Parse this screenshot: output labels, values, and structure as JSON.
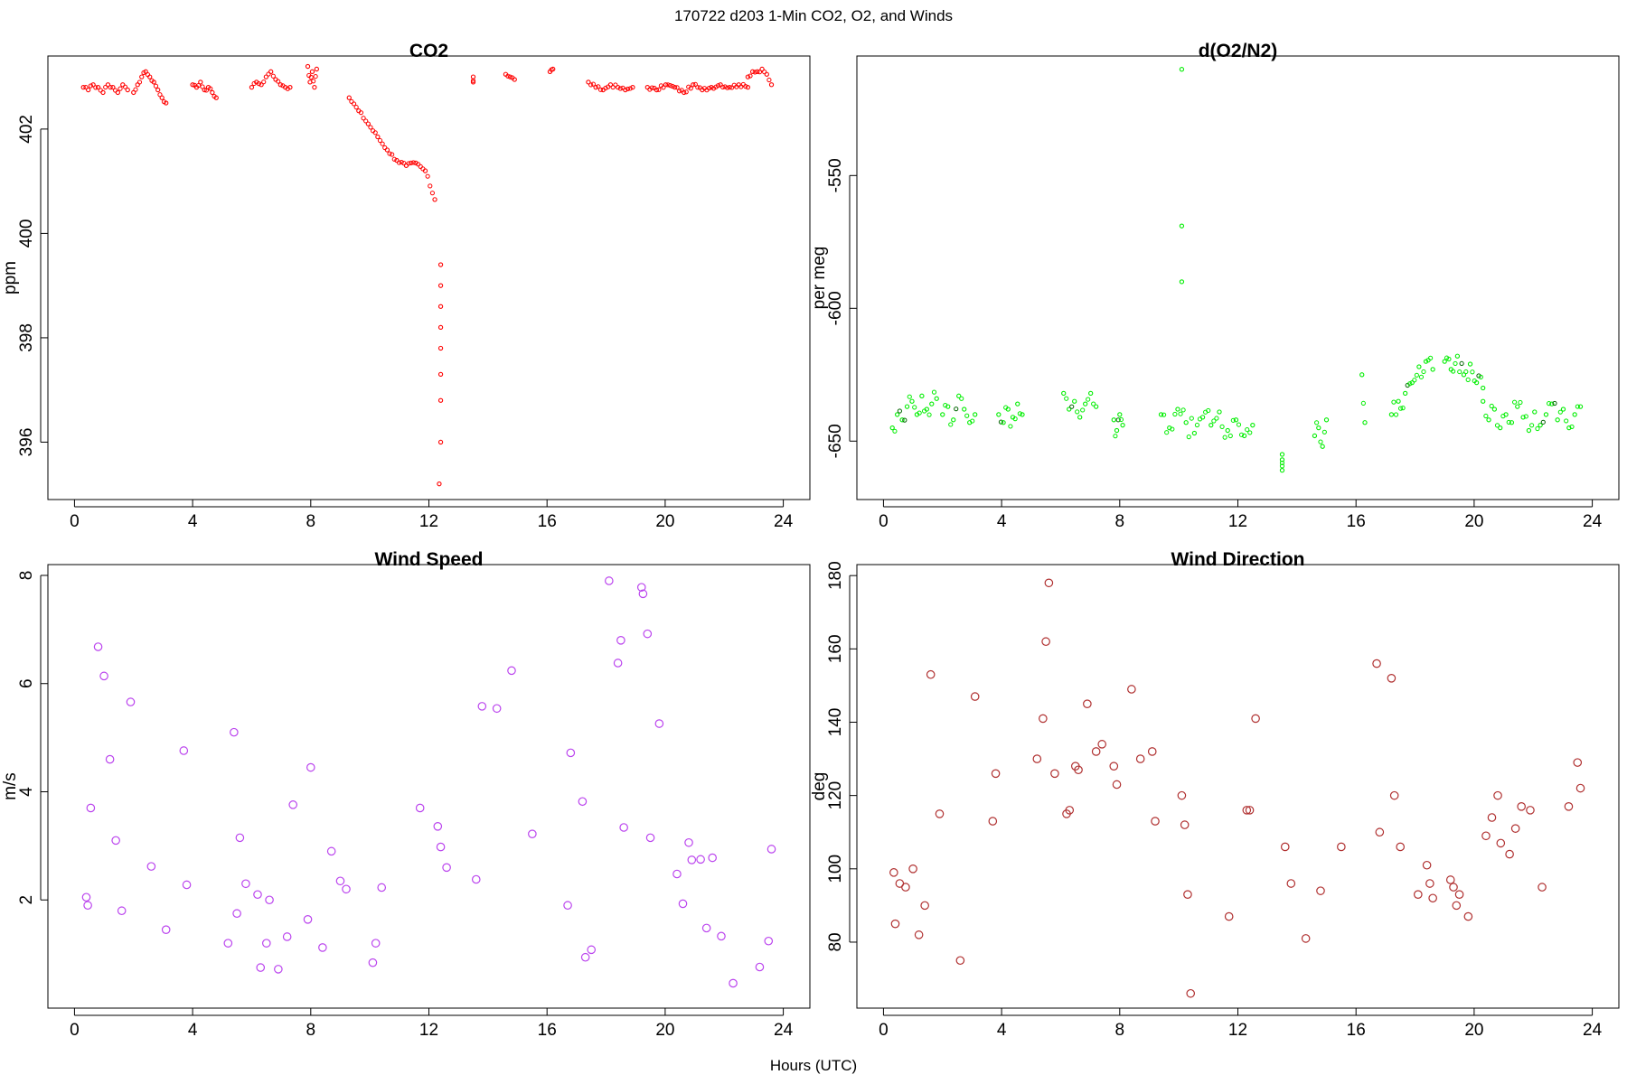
{
  "figure": {
    "title": "170722   d203   1-Min CO2, O2, and Winds",
    "xlabel": "Hours (UTC)"
  },
  "chart_data": [
    {
      "id": "co2",
      "type": "scatter",
      "title": "CO2",
      "xlabel": "",
      "ylabel": "ppm",
      "xlim": [
        -0.9,
        24.9
      ],
      "ylim": [
        394.9,
        403.4
      ],
      "xticks": [
        0,
        4,
        8,
        12,
        16,
        20,
        24
      ],
      "yticks": [
        396,
        398,
        400,
        402
      ],
      "color": "#ff0000",
      "marker_size": "small",
      "series": [
        {
          "name": "",
          "segments": [
            {
              "x0": 0.3,
              "x1": 1.8,
              "y": [
                402.8,
                402.75,
                402.85,
                402.8,
                402.7,
                402.85,
                402.8,
                402.7,
                402.85,
                402.75
              ]
            },
            {
              "x0": 2.0,
              "x1": 3.1,
              "y": [
                402.7,
                402.85,
                403.0,
                403.1,
                403.0,
                402.9,
                402.75,
                402.6,
                402.5
              ]
            },
            {
              "x0": 4.0,
              "x1": 4.8,
              "y": [
                402.85,
                402.8,
                402.9,
                402.75,
                402.8,
                402.7,
                402.6
              ]
            },
            {
              "x0": 6.0,
              "x1": 7.3,
              "y": [
                402.8,
                402.9,
                402.85,
                403.0,
                403.1,
                402.95,
                402.85,
                402.8,
                402.8
              ]
            },
            {
              "x0": 7.9,
              "x1": 8.2,
              "y": [
                403.2,
                402.9,
                403.1,
                402.8,
                403.15
              ]
            },
            {
              "x0": 9.3,
              "x1": 12.2,
              "y": [
                402.6,
                402.35,
                402.1,
                401.85,
                401.6,
                401.4,
                401.3,
                401.35,
                401.2,
                400.65
              ]
            },
            {
              "x0": 13.5,
              "x1": 13.5,
              "y": [
                402.9,
                403.0
              ]
            },
            {
              "x0": 14.6,
              "x1": 14.9,
              "y": [
                403.05,
                403.0,
                402.95
              ]
            },
            {
              "x0": 16.1,
              "x1": 16.2,
              "y": [
                403.1,
                403.15
              ]
            },
            {
              "x0": 17.4,
              "x1": 18.9,
              "y": [
                402.9,
                402.8,
                402.75,
                402.85,
                402.8,
                402.75,
                402.8
              ]
            },
            {
              "x0": 19.4,
              "x1": 22.8,
              "y": [
                402.8,
                402.75,
                402.85,
                402.8,
                402.7,
                402.85,
                402.75,
                402.8,
                402.85,
                402.8,
                402.85,
                402.8
              ]
            },
            {
              "x0": 22.8,
              "x1": 23.6,
              "y": [
                403.0,
                403.1,
                403.1,
                403.15,
                403.05,
                402.85
              ]
            }
          ],
          "points": [
            [
              12.4,
              399.4
            ],
            [
              12.4,
              399.0
            ],
            [
              12.4,
              398.6
            ],
            [
              12.4,
              398.2
            ],
            [
              12.4,
              397.8
            ],
            [
              12.4,
              397.3
            ],
            [
              12.4,
              396.8
            ],
            [
              12.4,
              396.0
            ],
            [
              12.35,
              395.2
            ]
          ]
        }
      ]
    },
    {
      "id": "o2n2",
      "type": "scatter",
      "title": "d(O2/N2)",
      "xlabel": "",
      "ylabel": "per meg",
      "xlim": [
        -0.9,
        24.9
      ],
      "ylim": [
        -672,
        -505
      ],
      "xticks": [
        0,
        4,
        8,
        12,
        16,
        20,
        24
      ],
      "yticks": [
        -650,
        -600,
        -550
      ],
      "color": "#00ee00",
      "accent_color": "#006400",
      "marker_size": "small",
      "series": [
        {
          "name": "",
          "segments": [
            {
              "x0": 0.3,
              "x1": 1.8,
              "y": [
                -645,
                -640,
                -642,
                -637,
                -635,
                -640,
                -633,
                -638,
                -636,
                -634
              ]
            },
            {
              "x0": 2.0,
              "x1": 3.1,
              "y": [
                -640,
                -637,
                -642,
                -633,
                -638,
                -643,
                -640
              ]
            },
            {
              "x0": 3.9,
              "x1": 4.7,
              "y": [
                -640,
                -643,
                -638,
                -641,
                -636,
                -640
              ]
            },
            {
              "x0": 6.1,
              "x1": 7.2,
              "y": [
                -632,
                -638,
                -635,
                -641,
                -636,
                -632,
                -637
              ]
            },
            {
              "x0": 7.8,
              "x1": 8.1,
              "y": [
                -642,
                -646,
                -640,
                -644
              ]
            },
            {
              "x0": 9.4,
              "x1": 12.5,
              "y": [
                -640,
                -645,
                -638,
                -643,
                -647,
                -641,
                -644,
                -639,
                -646,
                -642,
                -648,
                -644
              ]
            },
            {
              "x0": 13.5,
              "x1": 13.5,
              "y": [
                -655,
                -657,
                -661
              ]
            },
            {
              "x0": 14.6,
              "x1": 15.0,
              "y": [
                -648,
                -645,
                -652,
                -642
              ]
            },
            {
              "x0": 16.2,
              "x1": 16.3,
              "y": [
                -625,
                -643
              ]
            },
            {
              "x0": 17.2,
              "x1": 18.6,
              "y": [
                -640,
                -635,
                -632,
                -628,
                -622,
                -620,
                -623
              ]
            },
            {
              "x0": 19.0,
              "x1": 20.3,
              "y": [
                -620,
                -623,
                -618,
                -625,
                -621,
                -628,
                -630
              ]
            },
            {
              "x0": 20.3,
              "x1": 23.6,
              "y": [
                -635,
                -642,
                -638,
                -645,
                -640,
                -643,
                -637,
                -641,
                -646,
                -639,
                -644,
                -640,
                -636,
                -642,
                -638,
                -645,
                -640,
                -637
              ]
            }
          ],
          "points": [
            [
              10.1,
              -510
            ],
            [
              10.1,
              -569
            ],
            [
              10.1,
              -590
            ]
          ]
        }
      ]
    },
    {
      "id": "wspd",
      "type": "scatter",
      "title": "Wind Speed",
      "xlabel": "",
      "ylabel": "m/s",
      "xlim": [
        -0.9,
        24.9
      ],
      "ylim": [
        0.0,
        8.2
      ],
      "xticks": [
        0,
        4,
        8,
        12,
        16,
        20,
        24
      ],
      "yticks": [
        2,
        4,
        6,
        8
      ],
      "color": "#bb44ee",
      "marker_size": "large",
      "series": [
        {
          "name": "",
          "x": [
            0.4,
            0.45,
            0.55,
            0.8,
            1.0,
            1.2,
            1.4,
            1.6,
            1.9,
            2.6,
            3.1,
            3.7,
            3.8,
            5.2,
            5.4,
            5.5,
            5.6,
            5.8,
            6.2,
            6.3,
            6.5,
            6.6,
            6.9,
            7.2,
            7.4,
            7.9,
            8.0,
            8.4,
            8.7,
            9.0,
            9.2,
            10.1,
            10.2,
            10.4,
            11.7,
            12.3,
            12.4,
            12.6,
            13.6,
            13.8,
            14.3,
            14.8,
            15.5,
            16.7,
            16.8,
            17.2,
            17.3,
            17.5,
            18.1,
            18.4,
            18.5,
            18.6,
            19.2,
            19.25,
            19.4,
            19.5,
            19.8,
            20.4,
            20.6,
            20.8,
            20.9,
            21.2,
            21.4,
            21.6,
            21.9,
            22.3,
            23.2,
            23.5,
            23.6
          ],
          "y": [
            2.05,
            1.9,
            3.7,
            6.68,
            6.14,
            4.6,
            3.1,
            1.8,
            5.66,
            2.62,
            1.45,
            4.76,
            2.28,
            1.2,
            5.1,
            1.75,
            3.15,
            2.3,
            2.1,
            0.75,
            1.2,
            2.0,
            0.72,
            1.32,
            3.76,
            1.64,
            4.45,
            1.12,
            2.9,
            2.35,
            2.2,
            0.84,
            1.2,
            2.23,
            3.7,
            3.36,
            2.98,
            2.6,
            2.38,
            5.58,
            5.54,
            6.24,
            3.22,
            1.9,
            4.72,
            3.82,
            0.94,
            1.08,
            7.9,
            6.38,
            6.8,
            3.34,
            7.78,
            7.66,
            6.92,
            3.15,
            5.26,
            2.48,
            1.93,
            3.06,
            2.74,
            2.75,
            1.48,
            2.78,
            1.33,
            0.46,
            0.76,
            1.24,
            2.94
          ]
        }
      ]
    },
    {
      "id": "wdir",
      "type": "scatter",
      "title": "Wind Direction",
      "xlabel": "",
      "ylabel": "deg",
      "xlim": [
        -0.9,
        24.9
      ],
      "ylim": [
        62,
        183
      ],
      "xticks": [
        0,
        4,
        8,
        12,
        16,
        20,
        24
      ],
      "yticks": [
        80,
        100,
        120,
        140,
        160,
        180
      ],
      "color": "#b03030",
      "marker_size": "large",
      "series": [
        {
          "name": "",
          "x": [
            0.35,
            0.4,
            0.55,
            0.75,
            1.0,
            1.2,
            1.4,
            1.6,
            1.9,
            2.6,
            3.1,
            3.7,
            3.8,
            5.2,
            5.4,
            5.5,
            5.6,
            5.8,
            6.2,
            6.3,
            6.5,
            6.6,
            6.9,
            7.2,
            7.4,
            7.8,
            7.9,
            8.4,
            8.7,
            9.1,
            9.2,
            10.1,
            10.2,
            10.3,
            10.4,
            11.7,
            12.3,
            12.4,
            12.6,
            13.6,
            13.8,
            14.3,
            14.8,
            15.5,
            16.7,
            16.8,
            17.2,
            17.3,
            17.5,
            18.1,
            18.4,
            18.5,
            18.6,
            19.2,
            19.3,
            19.4,
            19.5,
            19.8,
            20.4,
            20.6,
            20.8,
            20.9,
            21.2,
            21.4,
            21.6,
            21.9,
            22.3,
            23.2,
            23.5,
            23.6
          ],
          "y": [
            99,
            85,
            96,
            95,
            100,
            82,
            90,
            153,
            115,
            75,
            147,
            113,
            126,
            130,
            141,
            162,
            178,
            126,
            115,
            116,
            128,
            127,
            145,
            132,
            134,
            128,
            123,
            149,
            130,
            132,
            113,
            120,
            112,
            93,
            66,
            87,
            116,
            116,
            141,
            106,
            96,
            81,
            94,
            106,
            156,
            110,
            152,
            120,
            106,
            93,
            101,
            96,
            92,
            97,
            95,
            90,
            93,
            87,
            109,
            114,
            120,
            107,
            104,
            111,
            117,
            116,
            95,
            117,
            129,
            122
          ]
        }
      ]
    }
  ]
}
